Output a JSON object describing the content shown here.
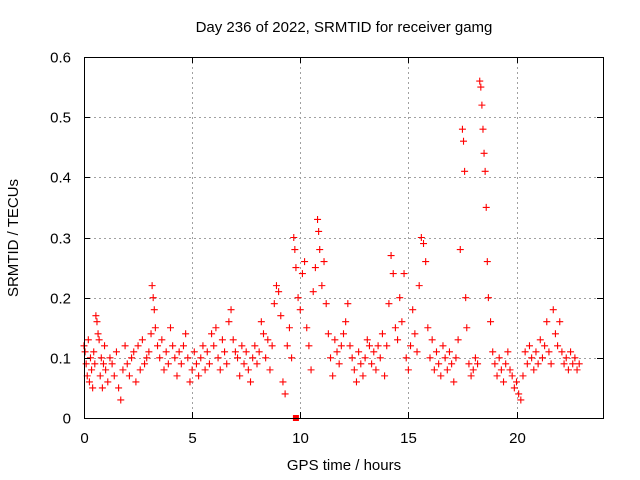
{
  "chart_data": {
    "type": "scatter",
    "title": "Day 236 of 2022, SRMTID for receiver gamg",
    "xlabel": "GPS time / hours",
    "ylabel": "SRMTID / TECUs",
    "xlim": [
      0,
      24
    ],
    "ylim": [
      0,
      0.6
    ],
    "xticks": [
      0,
      5,
      10,
      15,
      20
    ],
    "yticks": [
      0,
      0.1,
      0.2,
      0.3,
      0.4,
      0.5,
      0.6
    ],
    "xtick_labels": [
      "0",
      "5",
      "10",
      "15",
      "20"
    ],
    "ytick_labels": [
      "0",
      "0.1",
      "0.2",
      "0.3",
      "0.4",
      "0.5",
      "0.6"
    ],
    "grid": true,
    "marker": "plus",
    "color": "#ff0000",
    "zero_marker": {
      "x": 9.8,
      "y": 0
    },
    "series": [
      {
        "name": "SRMTID",
        "points": [
          [
            0.0,
            0.12
          ],
          [
            0.05,
            0.11
          ],
          [
            0.1,
            0.09
          ],
          [
            0.15,
            0.07
          ],
          [
            0.2,
            0.13
          ],
          [
            0.25,
            0.06
          ],
          [
            0.3,
            0.1
          ],
          [
            0.35,
            0.08
          ],
          [
            0.4,
            0.05
          ],
          [
            0.45,
            0.11
          ],
          [
            0.5,
            0.09
          ],
          [
            0.55,
            0.17
          ],
          [
            0.6,
            0.16
          ],
          [
            0.65,
            0.14
          ],
          [
            0.7,
            0.13
          ],
          [
            0.75,
            0.07
          ],
          [
            0.8,
            0.1
          ],
          [
            0.85,
            0.05
          ],
          [
            0.9,
            0.09
          ],
          [
            0.95,
            0.12
          ],
          [
            1.0,
            0.08
          ],
          [
            1.1,
            0.06
          ],
          [
            1.2,
            0.1
          ],
          [
            1.3,
            0.09
          ],
          [
            1.4,
            0.07
          ],
          [
            1.5,
            0.11
          ],
          [
            1.6,
            0.05
          ],
          [
            1.7,
            0.03
          ],
          [
            1.8,
            0.08
          ],
          [
            1.9,
            0.12
          ],
          [
            2.0,
            0.09
          ],
          [
            2.1,
            0.07
          ],
          [
            2.2,
            0.1
          ],
          [
            2.3,
            0.11
          ],
          [
            2.4,
            0.06
          ],
          [
            2.5,
            0.12
          ],
          [
            2.6,
            0.08
          ],
          [
            2.7,
            0.13
          ],
          [
            2.8,
            0.09
          ],
          [
            2.9,
            0.1
          ],
          [
            3.0,
            0.11
          ],
          [
            3.1,
            0.14
          ],
          [
            3.15,
            0.22
          ],
          [
            3.2,
            0.2
          ],
          [
            3.25,
            0.18
          ],
          [
            3.3,
            0.15
          ],
          [
            3.4,
            0.12
          ],
          [
            3.5,
            0.1
          ],
          [
            3.6,
            0.13
          ],
          [
            3.7,
            0.08
          ],
          [
            3.8,
            0.11
          ],
          [
            3.9,
            0.09
          ],
          [
            4.0,
            0.15
          ],
          [
            4.1,
            0.12
          ],
          [
            4.2,
            0.1
          ],
          [
            4.3,
            0.07
          ],
          [
            4.4,
            0.11
          ],
          [
            4.5,
            0.09
          ],
          [
            4.6,
            0.12
          ],
          [
            4.7,
            0.14
          ],
          [
            4.8,
            0.1
          ],
          [
            4.9,
            0.06
          ],
          [
            5.0,
            0.08
          ],
          [
            5.1,
            0.11
          ],
          [
            5.2,
            0.09
          ],
          [
            5.3,
            0.07
          ],
          [
            5.4,
            0.1
          ],
          [
            5.5,
            0.12
          ],
          [
            5.6,
            0.08
          ],
          [
            5.7,
            0.11
          ],
          [
            5.8,
            0.09
          ],
          [
            5.9,
            0.14
          ],
          [
            6.0,
            0.12
          ],
          [
            6.1,
            0.15
          ],
          [
            6.2,
            0.1
          ],
          [
            6.3,
            0.08
          ],
          [
            6.4,
            0.13
          ],
          [
            6.5,
            0.11
          ],
          [
            6.6,
            0.09
          ],
          [
            6.7,
            0.16
          ],
          [
            6.8,
            0.18
          ],
          [
            6.9,
            0.13
          ],
          [
            7.0,
            0.11
          ],
          [
            7.1,
            0.1
          ],
          [
            7.2,
            0.07
          ],
          [
            7.3,
            0.12
          ],
          [
            7.4,
            0.09
          ],
          [
            7.5,
            0.11
          ],
          [
            7.6,
            0.08
          ],
          [
            7.7,
            0.06
          ],
          [
            7.8,
            0.1
          ],
          [
            7.9,
            0.12
          ],
          [
            8.0,
            0.09
          ],
          [
            8.1,
            0.11
          ],
          [
            8.2,
            0.16
          ],
          [
            8.3,
            0.14
          ],
          [
            8.4,
            0.1
          ],
          [
            8.5,
            0.13
          ],
          [
            8.6,
            0.08
          ],
          [
            8.7,
            0.12
          ],
          [
            8.8,
            0.19
          ],
          [
            8.9,
            0.22
          ],
          [
            9.0,
            0.21
          ],
          [
            9.1,
            0.17
          ],
          [
            9.2,
            0.06
          ],
          [
            9.3,
            0.04
          ],
          [
            9.4,
            0.12
          ],
          [
            9.5,
            0.15
          ],
          [
            9.6,
            0.1
          ],
          [
            9.7,
            0.3
          ],
          [
            9.75,
            0.28
          ],
          [
            9.8,
            0.25
          ],
          [
            9.9,
            0.2
          ],
          [
            10.0,
            0.18
          ],
          [
            10.1,
            0.24
          ],
          [
            10.2,
            0.26
          ],
          [
            10.3,
            0.15
          ],
          [
            10.4,
            0.12
          ],
          [
            10.5,
            0.08
          ],
          [
            10.6,
            0.21
          ],
          [
            10.7,
            0.25
          ],
          [
            10.8,
            0.33
          ],
          [
            10.85,
            0.31
          ],
          [
            10.9,
            0.28
          ],
          [
            11.0,
            0.22
          ],
          [
            11.1,
            0.26
          ],
          [
            11.2,
            0.19
          ],
          [
            11.3,
            0.14
          ],
          [
            11.4,
            0.1
          ],
          [
            11.5,
            0.07
          ],
          [
            11.6,
            0.13
          ],
          [
            11.7,
            0.11
          ],
          [
            11.8,
            0.09
          ],
          [
            11.9,
            0.12
          ],
          [
            12.0,
            0.14
          ],
          [
            12.1,
            0.16
          ],
          [
            12.2,
            0.19
          ],
          [
            12.3,
            0.12
          ],
          [
            12.4,
            0.1
          ],
          [
            12.5,
            0.08
          ],
          [
            12.6,
            0.06
          ],
          [
            12.7,
            0.11
          ],
          [
            12.8,
            0.09
          ],
          [
            12.9,
            0.07
          ],
          [
            13.0,
            0.1
          ],
          [
            13.1,
            0.13
          ],
          [
            13.2,
            0.12
          ],
          [
            13.3,
            0.09
          ],
          [
            13.4,
            0.11
          ],
          [
            13.5,
            0.08
          ],
          [
            13.6,
            0.12
          ],
          [
            13.7,
            0.1
          ],
          [
            13.8,
            0.14
          ],
          [
            13.9,
            0.07
          ],
          [
            14.0,
            0.12
          ],
          [
            14.1,
            0.19
          ],
          [
            14.2,
            0.27
          ],
          [
            14.3,
            0.24
          ],
          [
            14.4,
            0.15
          ],
          [
            14.5,
            0.13
          ],
          [
            14.6,
            0.2
          ],
          [
            14.7,
            0.16
          ],
          [
            14.8,
            0.24
          ],
          [
            14.9,
            0.1
          ],
          [
            15.0,
            0.08
          ],
          [
            15.1,
            0.12
          ],
          [
            15.2,
            0.18
          ],
          [
            15.3,
            0.14
          ],
          [
            15.4,
            0.11
          ],
          [
            15.5,
            0.22
          ],
          [
            15.6,
            0.3
          ],
          [
            15.7,
            0.29
          ],
          [
            15.8,
            0.26
          ],
          [
            15.9,
            0.15
          ],
          [
            16.0,
            0.1
          ],
          [
            16.1,
            0.13
          ],
          [
            16.2,
            0.08
          ],
          [
            16.3,
            0.11
          ],
          [
            16.4,
            0.09
          ],
          [
            16.5,
            0.07
          ],
          [
            16.6,
            0.12
          ],
          [
            16.7,
            0.1
          ],
          [
            16.8,
            0.08
          ],
          [
            16.9,
            0.11
          ],
          [
            17.0,
            0.09
          ],
          [
            17.1,
            0.06
          ],
          [
            17.2,
            0.1
          ],
          [
            17.3,
            0.13
          ],
          [
            17.4,
            0.28
          ],
          [
            17.5,
            0.48
          ],
          [
            17.55,
            0.46
          ],
          [
            17.6,
            0.41
          ],
          [
            17.65,
            0.2
          ],
          [
            17.7,
            0.15
          ],
          [
            17.8,
            0.09
          ],
          [
            17.9,
            0.07
          ],
          [
            18.0,
            0.08
          ],
          [
            18.1,
            0.1
          ],
          [
            18.2,
            0.09
          ],
          [
            18.3,
            0.56
          ],
          [
            18.35,
            0.55
          ],
          [
            18.4,
            0.52
          ],
          [
            18.45,
            0.48
          ],
          [
            18.5,
            0.44
          ],
          [
            18.55,
            0.41
          ],
          [
            18.6,
            0.35
          ],
          [
            18.65,
            0.26
          ],
          [
            18.7,
            0.2
          ],
          [
            18.8,
            0.16
          ],
          [
            18.9,
            0.11
          ],
          [
            19.0,
            0.09
          ],
          [
            19.1,
            0.07
          ],
          [
            19.2,
            0.1
          ],
          [
            19.3,
            0.08
          ],
          [
            19.4,
            0.06
          ],
          [
            19.5,
            0.09
          ],
          [
            19.6,
            0.11
          ],
          [
            19.7,
            0.08
          ],
          [
            19.8,
            0.07
          ],
          [
            19.9,
            0.05
          ],
          [
            20.0,
            0.06
          ],
          [
            20.1,
            0.04
          ],
          [
            20.2,
            0.03
          ],
          [
            20.3,
            0.07
          ],
          [
            20.4,
            0.11
          ],
          [
            20.5,
            0.09
          ],
          [
            20.6,
            0.12
          ],
          [
            20.7,
            0.1
          ],
          [
            20.8,
            0.08
          ],
          [
            20.9,
            0.11
          ],
          [
            21.0,
            0.09
          ],
          [
            21.1,
            0.13
          ],
          [
            21.2,
            0.1
          ],
          [
            21.3,
            0.12
          ],
          [
            21.4,
            0.16
          ],
          [
            21.5,
            0.11
          ],
          [
            21.6,
            0.09
          ],
          [
            21.7,
            0.18
          ],
          [
            21.8,
            0.14
          ],
          [
            21.9,
            0.12
          ],
          [
            22.0,
            0.16
          ],
          [
            22.1,
            0.11
          ],
          [
            22.2,
            0.09
          ],
          [
            22.3,
            0.1
          ],
          [
            22.4,
            0.08
          ],
          [
            22.5,
            0.11
          ],
          [
            22.6,
            0.09
          ],
          [
            22.7,
            0.1
          ],
          [
            22.8,
            0.08
          ],
          [
            22.9,
            0.09
          ]
        ]
      }
    ]
  }
}
